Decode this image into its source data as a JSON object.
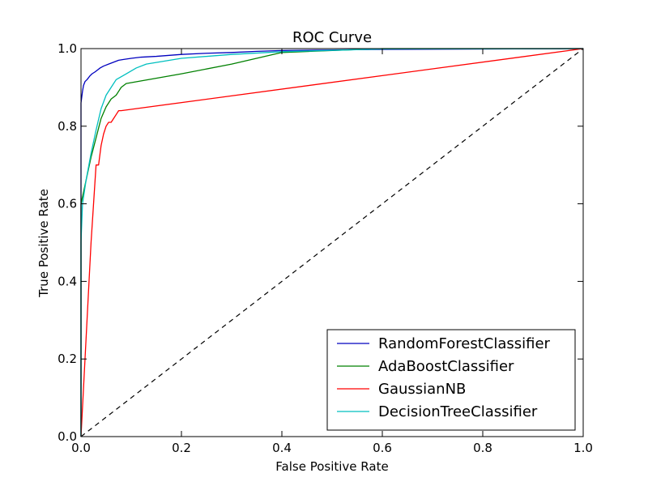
{
  "chart_data": {
    "type": "line",
    "title": "ROC Curve",
    "xlabel": "False Positive Rate",
    "ylabel": "True Positive Rate",
    "xlim": [
      0.0,
      1.0
    ],
    "ylim": [
      0.0,
      1.0
    ],
    "xticks": [
      "0.0",
      "0.2",
      "0.4",
      "0.6",
      "0.8",
      "1.0"
    ],
    "yticks": [
      "0.0",
      "0.2",
      "0.4",
      "0.6",
      "0.8",
      "1.0"
    ],
    "grid": false,
    "legend_position": "lower-right",
    "series": [
      {
        "name": "RandomForestClassifier",
        "color": "#0000bf",
        "x": [
          0.0,
          0.0,
          0.003,
          0.005,
          0.008,
          0.012,
          0.018,
          0.022,
          0.028,
          0.033,
          0.038,
          0.045,
          0.055,
          0.065,
          0.075,
          0.085,
          0.1,
          0.12,
          0.15,
          0.2,
          0.25,
          0.3,
          0.35,
          0.4,
          0.6,
          1.0
        ],
        "y": [
          0.0,
          0.86,
          0.89,
          0.905,
          0.915,
          0.92,
          0.93,
          0.935,
          0.94,
          0.945,
          0.95,
          0.955,
          0.96,
          0.965,
          0.97,
          0.972,
          0.975,
          0.978,
          0.98,
          0.985,
          0.988,
          0.99,
          0.993,
          0.995,
          0.998,
          1.0
        ]
      },
      {
        "name": "AdaBoostClassifier",
        "color": "#008000",
        "x": [
          0.0,
          0.0,
          0.005,
          0.01,
          0.02,
          0.03,
          0.04,
          0.05,
          0.06,
          0.065,
          0.07,
          0.075,
          0.08,
          0.085,
          0.09,
          0.2,
          0.3,
          0.4,
          0.6,
          1.0
        ],
        "y": [
          0.0,
          0.6,
          0.63,
          0.66,
          0.72,
          0.77,
          0.82,
          0.85,
          0.87,
          0.875,
          0.88,
          0.89,
          0.9,
          0.905,
          0.91,
          0.935,
          0.96,
          0.99,
          1.0,
          1.0
        ]
      },
      {
        "name": "GaussianNB",
        "color": "#ff0000",
        "x": [
          0.0,
          0.01,
          0.02,
          0.03,
          0.035,
          0.04,
          0.045,
          0.05,
          0.055,
          0.06,
          0.065,
          0.07,
          0.075,
          0.08,
          1.0
        ],
        "y": [
          0.0,
          0.25,
          0.5,
          0.7,
          0.7,
          0.75,
          0.78,
          0.8,
          0.81,
          0.81,
          0.82,
          0.83,
          0.84,
          0.84,
          1.0
        ]
      },
      {
        "name": "DecisionTreeClassifier",
        "color": "#00bfbf",
        "x": [
          0.0,
          0.0,
          0.003,
          0.01,
          0.02,
          0.03,
          0.04,
          0.05,
          0.06,
          0.07,
          0.09,
          0.11,
          0.13,
          0.2,
          0.3,
          0.4,
          0.6,
          1.0
        ],
        "y": [
          0.0,
          0.5,
          0.6,
          0.66,
          0.73,
          0.79,
          0.845,
          0.88,
          0.9,
          0.92,
          0.935,
          0.95,
          0.96,
          0.975,
          0.985,
          0.992,
          0.999,
          1.0
        ]
      }
    ],
    "reference_line": {
      "x": [
        0.0,
        1.0
      ],
      "y": [
        0.0,
        1.0
      ],
      "color": "#000000",
      "style": "dashed"
    }
  }
}
